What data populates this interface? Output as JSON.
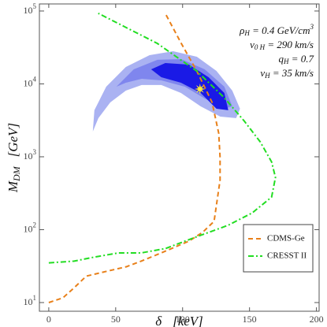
{
  "chart_data": {
    "type": "line",
    "xlabel": {
      "main": "δ",
      "rest": "[keV]"
    },
    "ylabel": {
      "main": "M",
      "sub": "DM",
      "rest": "[GeV]"
    },
    "xlim": [
      -7,
      202
    ],
    "ylim": [
      7.6,
      125000
    ],
    "log_y": true,
    "xticks": [
      0,
      50,
      100,
      150,
      200
    ],
    "yticks": [
      {
        "value": 10,
        "label": "10",
        "exponent": "1"
      },
      {
        "value": 100,
        "label": "10",
        "exponent": "2"
      },
      {
        "value": 1000,
        "label": "10",
        "exponent": "3"
      },
      {
        "value": 10000,
        "label": "10",
        "exponent": "4"
      },
      {
        "value": 100000,
        "label": "10",
        "exponent": "5"
      }
    ],
    "annotations": [
      {
        "main": "ρ",
        "sub": "H",
        "rest": " = 0.4 GeV/cm",
        "sup": "3"
      },
      {
        "main": "v",
        "sub": "0 H",
        "rest": " = 290 km/s"
      },
      {
        "main": "q",
        "sub": "H",
        "rest": " = 0.7"
      },
      {
        "main": "v",
        "sub": "H",
        "rest": " = 35 km/s"
      }
    ],
    "legend_position": "lower right",
    "regions": [
      {
        "color": "#aab2f2",
        "x": [
          32.9,
          34.1,
          42.9,
          57.6,
          75.3,
          92.9,
          110.6,
          125.3,
          137.1,
          142.9,
          140,
          128.2,
          113.5,
          98.8,
          84.1,
          69.4,
          57.6,
          45.9,
          37.1
        ],
        "values": [
          2220,
          4350,
          9160,
          17060,
          24800,
          28100,
          23600,
          15070,
          8090,
          4560,
          3390,
          3560,
          4920,
          7510,
          9640,
          9640,
          8090,
          5570,
          3390
        ]
      },
      {
        "color": "#7f86ee",
        "x": [
          50.6,
          63.5,
          81.2,
          98.8,
          116.5,
          131.2,
          137.1,
          131.2,
          116.5,
          101.7,
          84.1,
          69.4,
          57.6
        ],
        "values": [
          9160,
          15850,
          21380,
          21900,
          15850,
          9160,
          4920,
          4560,
          6310,
          9160,
          11190,
          11750,
          10380
        ]
      },
      {
        "color": "#1a1ae6",
        "x": [
          76.5,
          87.1,
          104.7,
          119.4,
          131.2,
          134.1,
          125.3,
          113.5,
          98.8,
          84.1
        ],
        "values": [
          15850,
          19320,
          18400,
          12360,
          7510,
          4350,
          4560,
          7510,
          10380,
          12360
        ]
      }
    ],
    "series": [
      {
        "name": "CDMS-Ge",
        "color": "#e8801a",
        "dash": "6,4",
        "x": [
          0,
          10.6,
          19,
          28,
          40,
          58,
          69,
          84,
          105,
          115,
          123.5,
          128,
          128,
          127,
          122,
          110.6,
          99,
          87
        ],
        "values": [
          10,
          11.6,
          16,
          23,
          26,
          31,
          37,
          48,
          70,
          92,
          130,
          480,
          980,
          2100,
          5600,
          15000,
          36000,
          93000
        ]
      },
      {
        "name": "CRESST II",
        "color": "#22dd22",
        "dash": "7,3,2,3",
        "x": [
          0,
          19,
          34,
          52,
          69,
          87,
          110.6,
          134,
          152,
          166.5,
          169.4,
          166.5,
          158,
          146,
          131,
          110.6,
          81,
          37
        ],
        "values": [
          35,
          37,
          42,
          48,
          48,
          55,
          80,
          115,
          170,
          280,
          520,
          850,
          1600,
          3100,
          6500,
          15000,
          36000,
          93000
        ]
      }
    ],
    "markers": [
      {
        "x": 113,
        "y": 8500,
        "color": "#ffee33"
      }
    ]
  }
}
